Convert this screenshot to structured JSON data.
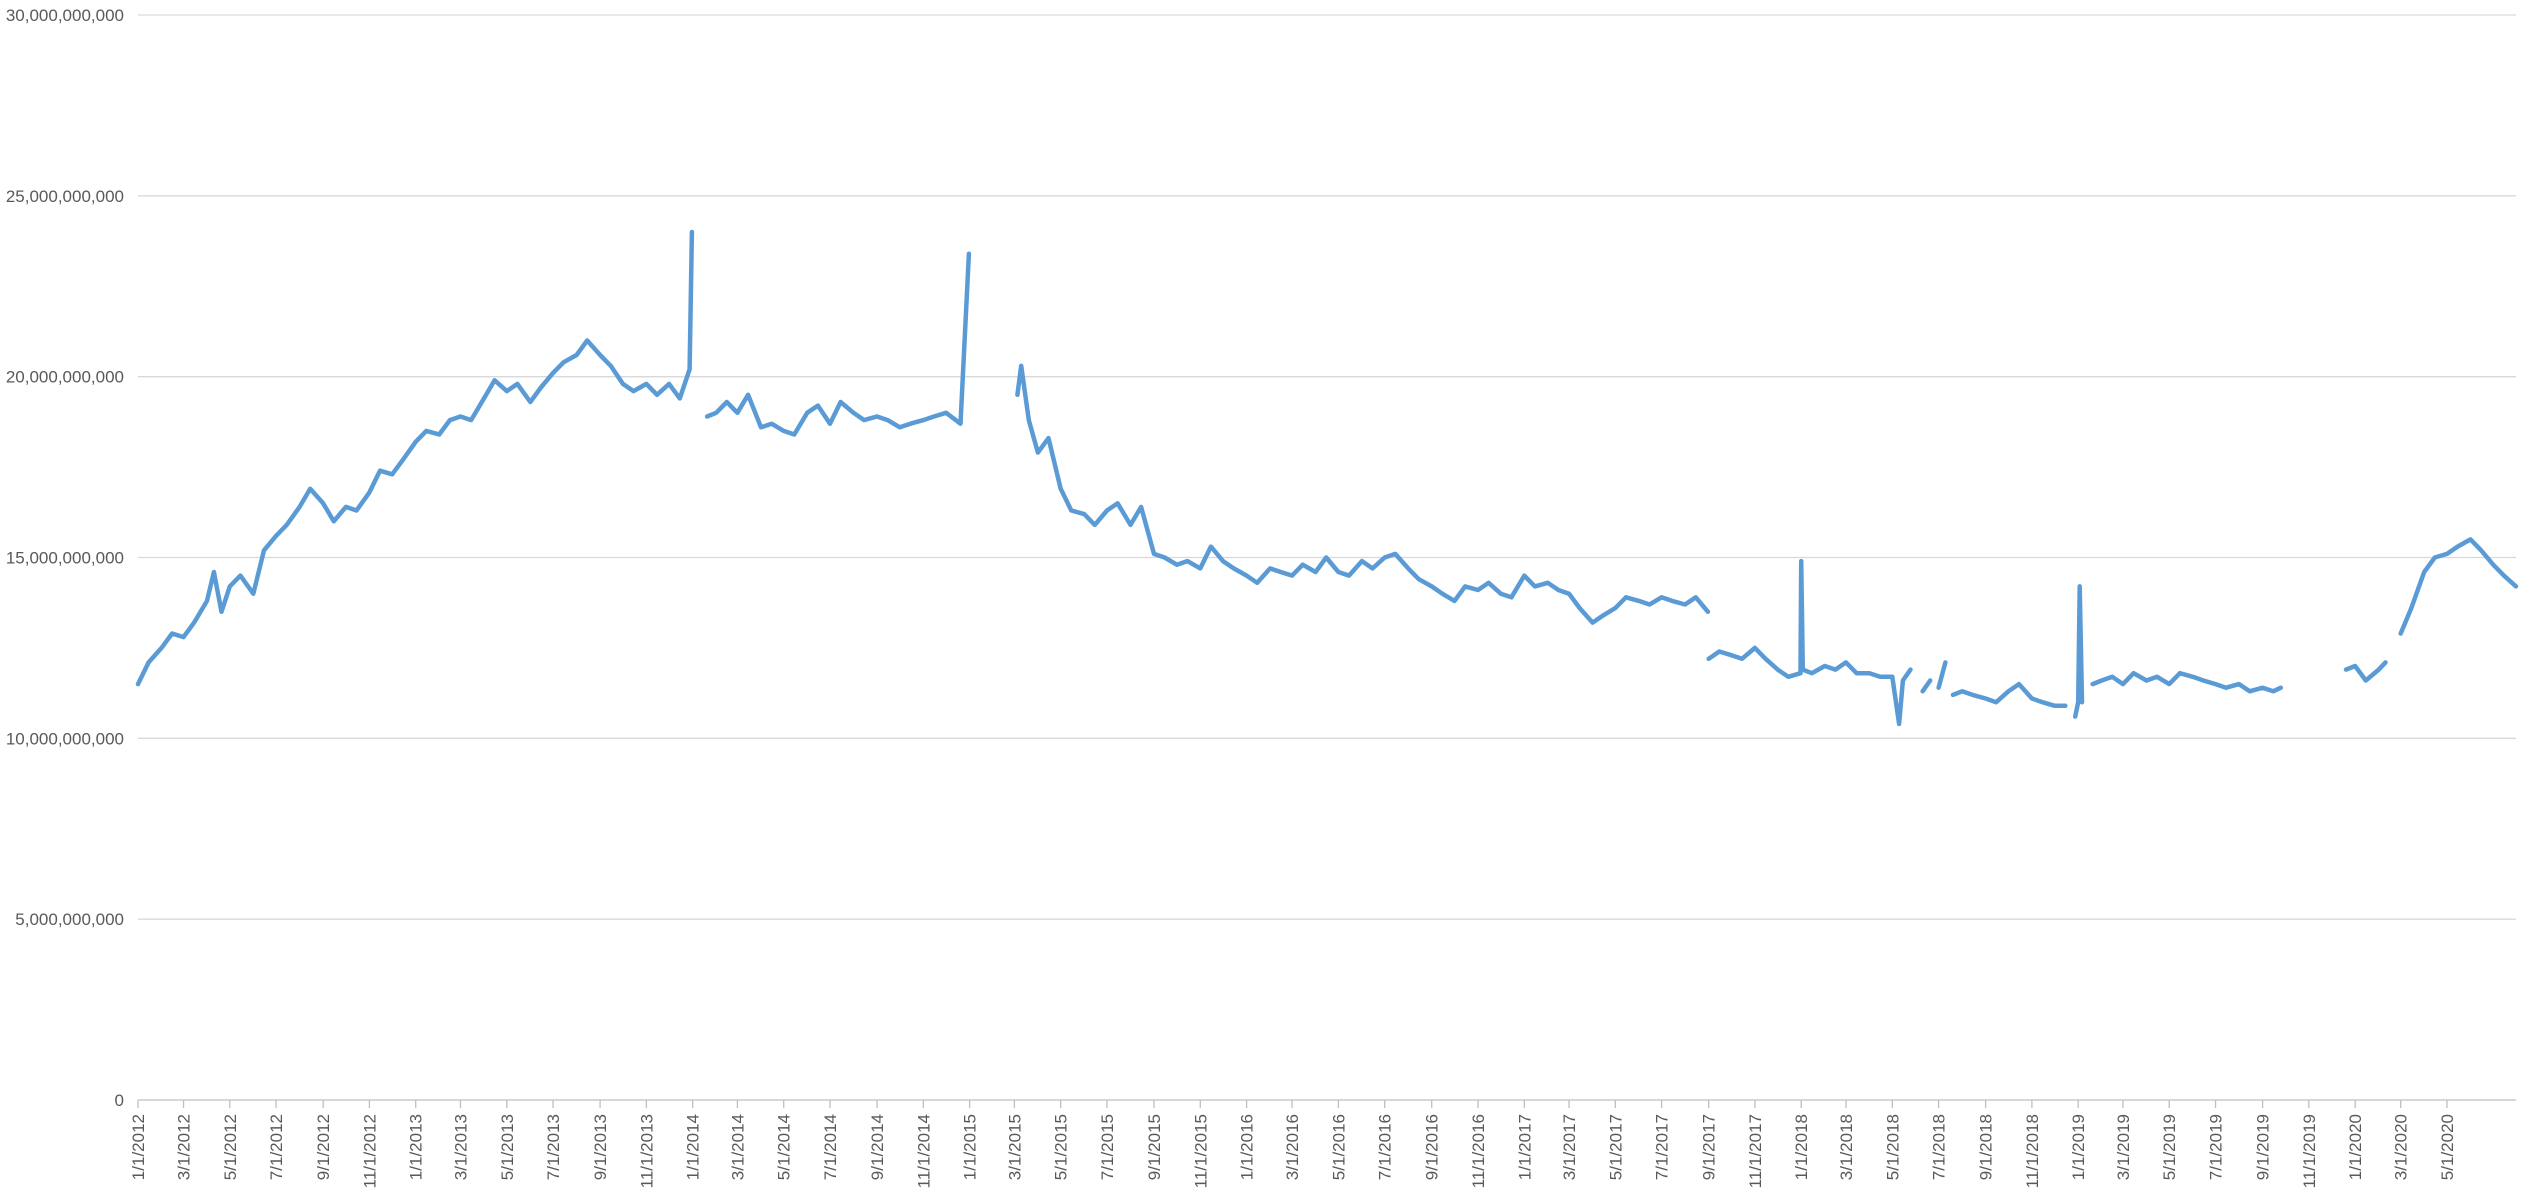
{
  "chart_data": {
    "type": "line",
    "title": "",
    "xlabel": "",
    "ylabel": "",
    "ylim": [
      0,
      30000000000
    ],
    "grid": true,
    "legend": "none",
    "colors": {
      "series": "#5b9bd5",
      "grid": "#d9d9d9",
      "axis": "#bfbfbf",
      "text": "#595959"
    },
    "y_ticks": [
      {
        "value": 0,
        "label": "0"
      },
      {
        "value": 5000000000,
        "label": "5,000,000,000"
      },
      {
        "value": 10000000000,
        "label": "10,000,000,000"
      },
      {
        "value": 15000000000,
        "label": "15,000,000,000"
      },
      {
        "value": 20000000000,
        "label": "20,000,000,000"
      },
      {
        "value": 25000000000,
        "label": "25,000,000,000"
      },
      {
        "value": 30000000000,
        "label": "30,000,000,000"
      }
    ],
    "x_ticks": [
      "1/1/2012",
      "3/1/2012",
      "5/1/2012",
      "7/1/2012",
      "9/1/2012",
      "11/1/2012",
      "1/1/2013",
      "3/1/2013",
      "5/1/2013",
      "7/1/2013",
      "9/1/2013",
      "11/1/2013",
      "1/1/2014",
      "3/1/2014",
      "5/1/2014",
      "7/1/2014",
      "9/1/2014",
      "11/1/2014",
      "1/1/2015",
      "3/1/2015",
      "5/1/2015",
      "7/1/2015",
      "9/1/2015",
      "11/1/2015",
      "1/1/2016",
      "3/1/2016",
      "5/1/2016",
      "7/1/2016",
      "9/1/2016",
      "11/1/2016",
      "1/1/2017",
      "3/1/2017",
      "5/1/2017",
      "7/1/2017",
      "9/1/2017",
      "11/1/2017",
      "1/1/2018",
      "3/1/2018",
      "5/1/2018",
      "7/1/2018",
      "9/1/2018",
      "11/1/2018",
      "1/1/2019",
      "3/1/2019",
      "5/1/2019",
      "7/1/2019",
      "9/1/2019",
      "11/1/2019",
      "1/1/2020",
      "3/1/2020",
      "5/1/2020"
    ],
    "x_range": [
      "1/1/2012",
      "7/31/2020"
    ],
    "series": [
      {
        "segments": [
          [
            [
              "1/1/2012",
              11.5
            ],
            [
              "1/15/2012",
              12.1
            ],
            [
              "2/1/2012",
              12.5
            ],
            [
              "2/15/2012",
              12.9
            ],
            [
              "3/1/2012",
              12.8
            ],
            [
              "3/15/2012",
              13.2
            ],
            [
              "4/1/2012",
              13.8
            ],
            [
              "4/10/2012",
              14.6
            ],
            [
              "4/20/2012",
              13.5
            ],
            [
              "5/1/2012",
              14.2
            ],
            [
              "5/15/2012",
              14.5
            ],
            [
              "6/1/2012",
              14.0
            ],
            [
              "6/15/2012",
              15.2
            ],
            [
              "7/1/2012",
              15.6
            ],
            [
              "7/15/2012",
              15.9
            ],
            [
              "8/1/2012",
              16.4
            ],
            [
              "8/15/2012",
              16.9
            ],
            [
              "9/1/2012",
              16.5
            ],
            [
              "9/15/2012",
              16.0
            ],
            [
              "10/1/2012",
              16.4
            ],
            [
              "10/15/2012",
              16.3
            ],
            [
              "11/1/2012",
              16.8
            ],
            [
              "11/15/2012",
              17.4
            ],
            [
              "12/1/2012",
              17.3
            ],
            [
              "12/15/2012",
              17.7
            ],
            [
              "1/1/2013",
              18.2
            ],
            [
              "1/15/2013",
              18.5
            ],
            [
              "2/1/2013",
              18.4
            ],
            [
              "2/15/2013",
              18.8
            ],
            [
              "3/1/2013",
              18.9
            ],
            [
              "3/15/2013",
              18.8
            ],
            [
              "4/1/2013",
              19.4
            ],
            [
              "4/15/2013",
              19.9
            ],
            [
              "5/1/2013",
              19.6
            ],
            [
              "5/15/2013",
              19.8
            ],
            [
              "6/1/2013",
              19.3
            ],
            [
              "6/15/2013",
              19.7
            ],
            [
              "7/1/2013",
              20.1
            ],
            [
              "7/15/2013",
              20.4
            ],
            [
              "8/1/2013",
              20.6
            ],
            [
              "8/15/2013",
              21.0
            ],
            [
              "9/1/2013",
              20.6
            ],
            [
              "9/15/2013",
              20.3
            ],
            [
              "10/1/2013",
              19.8
            ],
            [
              "10/15/2013",
              19.6
            ],
            [
              "11/1/2013",
              19.8
            ],
            [
              "11/15/2013",
              19.5
            ],
            [
              "12/1/2013",
              19.8
            ],
            [
              "12/15/2013",
              19.4
            ],
            [
              "12/28/2013",
              20.2
            ],
            [
              "12/31/2013",
              24.0
            ]
          ],
          [
            [
              "1/20/2014",
              18.9
            ],
            [
              "2/1/2014",
              19.0
            ],
            [
              "2/15/2014",
              19.3
            ],
            [
              "3/1/2014",
              19.0
            ],
            [
              "3/15/2014",
              19.5
            ],
            [
              "4/1/2014",
              18.6
            ],
            [
              "4/15/2014",
              18.7
            ],
            [
              "5/1/2014",
              18.5
            ],
            [
              "5/15/2014",
              18.4
            ],
            [
              "6/1/2014",
              19.0
            ],
            [
              "6/15/2014",
              19.2
            ],
            [
              "7/1/2014",
              18.7
            ],
            [
              "7/15/2014",
              19.3
            ],
            [
              "8/1/2014",
              19.0
            ],
            [
              "8/15/2014",
              18.8
            ],
            [
              "9/1/2014",
              18.9
            ],
            [
              "9/15/2014",
              18.8
            ],
            [
              "10/1/2014",
              18.6
            ],
            [
              "10/15/2014",
              18.7
            ],
            [
              "11/1/2014",
              18.8
            ],
            [
              "11/15/2014",
              18.9
            ],
            [
              "12/1/2014",
              19.0
            ],
            [
              "12/20/2014",
              18.7
            ],
            [
              "12/31/2014",
              23.4
            ]
          ],
          [
            [
              "3/5/2015",
              19.5
            ],
            [
              "3/10/2015",
              20.3
            ],
            [
              "3/20/2015",
              18.8
            ],
            [
              "4/1/2015",
              17.9
            ],
            [
              "4/15/2015",
              18.3
            ],
            [
              "5/1/2015",
              16.9
            ],
            [
              "5/15/2015",
              16.3
            ],
            [
              "6/1/2015",
              16.2
            ],
            [
              "6/15/2015",
              15.9
            ],
            [
              "7/1/2015",
              16.3
            ],
            [
              "7/15/2015",
              16.5
            ],
            [
              "8/1/2015",
              15.9
            ],
            [
              "8/15/2015",
              16.4
            ],
            [
              "9/1/2015",
              15.1
            ],
            [
              "9/15/2015",
              15.0
            ],
            [
              "10/1/2015",
              14.8
            ],
            [
              "10/15/2015",
              14.9
            ],
            [
              "11/1/2015",
              14.7
            ],
            [
              "11/15/2015",
              15.3
            ],
            [
              "12/1/2015",
              14.9
            ],
            [
              "12/15/2015",
              14.7
            ],
            [
              "1/1/2016",
              14.5
            ],
            [
              "1/15/2016",
              14.3
            ],
            [
              "2/1/2016",
              14.7
            ],
            [
              "2/15/2016",
              14.6
            ],
            [
              "3/1/2016",
              14.5
            ],
            [
              "3/15/2016",
              14.8
            ],
            [
              "4/1/2016",
              14.6
            ],
            [
              "4/15/2016",
              15.0
            ],
            [
              "5/1/2016",
              14.6
            ],
            [
              "5/15/2016",
              14.5
            ],
            [
              "6/1/2016",
              14.9
            ],
            [
              "6/15/2016",
              14.7
            ],
            [
              "7/1/2016",
              15.0
            ],
            [
              "7/15/2016",
              15.1
            ],
            [
              "8/1/2016",
              14.7
            ],
            [
              "8/15/2016",
              14.4
            ],
            [
              "9/1/2016",
              14.2
            ],
            [
              "9/15/2016",
              14.0
            ],
            [
              "10/1/2016",
              13.8
            ],
            [
              "10/15/2016",
              14.2
            ],
            [
              "11/1/2016",
              14.1
            ],
            [
              "11/15/2016",
              14.3
            ],
            [
              "12/1/2016",
              14.0
            ],
            [
              "12/15/2016",
              13.9
            ],
            [
              "1/1/2017",
              14.5
            ],
            [
              "1/15/2017",
              14.2
            ],
            [
              "2/1/2017",
              14.3
            ],
            [
              "2/15/2017",
              14.1
            ],
            [
              "3/1/2017",
              14.0
            ],
            [
              "3/15/2017",
              13.6
            ],
            [
              "4/1/2017",
              13.2
            ],
            [
              "4/15/2017",
              13.4
            ],
            [
              "5/1/2017",
              13.6
            ],
            [
              "5/15/2017",
              13.9
            ],
            [
              "6/1/2017",
              13.8
            ],
            [
              "6/15/2017",
              13.7
            ],
            [
              "7/1/2017",
              13.9
            ],
            [
              "7/15/2017",
              13.8
            ],
            [
              "8/1/2017",
              13.7
            ],
            [
              "8/15/2017",
              13.9
            ],
            [
              "8/31/2017",
              13.5
            ]
          ],
          [
            [
              "9/1/2017",
              12.2
            ],
            [
              "9/15/2017",
              12.4
            ],
            [
              "10/1/2017",
              12.3
            ],
            [
              "10/15/2017",
              12.2
            ],
            [
              "11/1/2017",
              12.5
            ],
            [
              "11/15/2017",
              12.2
            ],
            [
              "12/1/2017",
              11.9
            ],
            [
              "12/15/2017",
              11.7
            ],
            [
              "12/31/2017",
              11.8
            ],
            [
              "1/1/2018",
              14.9
            ],
            [
              "1/3/2018",
              11.9
            ],
            [
              "1/15/2018",
              11.8
            ],
            [
              "2/1/2018",
              12.0
            ],
            [
              "2/15/2018",
              11.9
            ],
            [
              "3/1/2018",
              12.1
            ],
            [
              "3/15/2018",
              11.8
            ],
            [
              "4/1/2018",
              11.8
            ],
            [
              "4/15/2018",
              11.7
            ],
            [
              "5/1/2018",
              11.7
            ],
            [
              "5/10/2018",
              10.4
            ],
            [
              "5/15/2018",
              11.6
            ],
            [
              "5/25/2018",
              11.9
            ]
          ],
          [
            [
              "6/10/2018",
              11.3
            ],
            [
              "6/20/2018",
              11.6
            ]
          ],
          [
            [
              "7/1/2018",
              11.4
            ],
            [
              "7/10/2018",
              12.1
            ]
          ],
          [
            [
              "7/20/2018",
              11.2
            ],
            [
              "8/1/2018",
              11.3
            ],
            [
              "8/15/2018",
              11.2
            ],
            [
              "9/1/2018",
              11.1
            ],
            [
              "9/15/2018",
              11.0
            ],
            [
              "10/1/2018",
              11.3
            ],
            [
              "10/15/2018",
              11.5
            ],
            [
              "11/1/2018",
              11.1
            ],
            [
              "11/15/2018",
              11.0
            ],
            [
              "12/1/2018",
              10.9
            ],
            [
              "12/15/2018",
              10.9
            ]
          ],
          [
            [
              "12/28/2018",
              10.6
            ],
            [
              "1/1/2019",
              11.0
            ],
            [
              "1/3/2019",
              14.2
            ],
            [
              "1/6/2019",
              11.0
            ]
          ],
          [
            [
              "1/20/2019",
              11.5
            ],
            [
              "2/1/2019",
              11.6
            ],
            [
              "2/15/2019",
              11.7
            ],
            [
              "3/1/2019",
              11.5
            ],
            [
              "3/15/2019",
              11.8
            ],
            [
              "4/1/2019",
              11.6
            ],
            [
              "4/15/2019",
              11.7
            ],
            [
              "5/1/2019",
              11.5
            ],
            [
              "5/15/2019",
              11.8
            ],
            [
              "6/1/2019",
              11.7
            ],
            [
              "6/15/2019",
              11.6
            ],
            [
              "7/1/2019",
              11.5
            ],
            [
              "7/15/2019",
              11.4
            ],
            [
              "8/1/2019",
              11.5
            ],
            [
              "8/15/2019",
              11.3
            ],
            [
              "9/1/2019",
              11.4
            ],
            [
              "9/15/2019",
              11.3
            ],
            [
              "9/25/2019",
              11.4
            ]
          ],
          [
            [
              "12/20/2019",
              11.9
            ],
            [
              "1/1/2020",
              12.0
            ],
            [
              "1/15/2020",
              11.6
            ],
            [
              "2/1/2020",
              11.9
            ],
            [
              "2/10/2020",
              12.1
            ]
          ],
          [
            [
              "3/1/2020",
              12.9
            ],
            [
              "3/15/2020",
              13.6
            ],
            [
              "4/1/2020",
              14.6
            ],
            [
              "4/15/2020",
              15.0
            ],
            [
              "5/1/2020",
              15.1
            ],
            [
              "5/15/2020",
              15.3
            ],
            [
              "6/1/2020",
              15.5
            ],
            [
              "6/15/2020",
              15.2
            ],
            [
              "7/1/2020",
              14.8
            ],
            [
              "7/15/2020",
              14.5
            ],
            [
              "7/31/2020",
              14.2
            ]
          ]
        ],
        "value_multiplier": 1000000000
      }
    ]
  }
}
